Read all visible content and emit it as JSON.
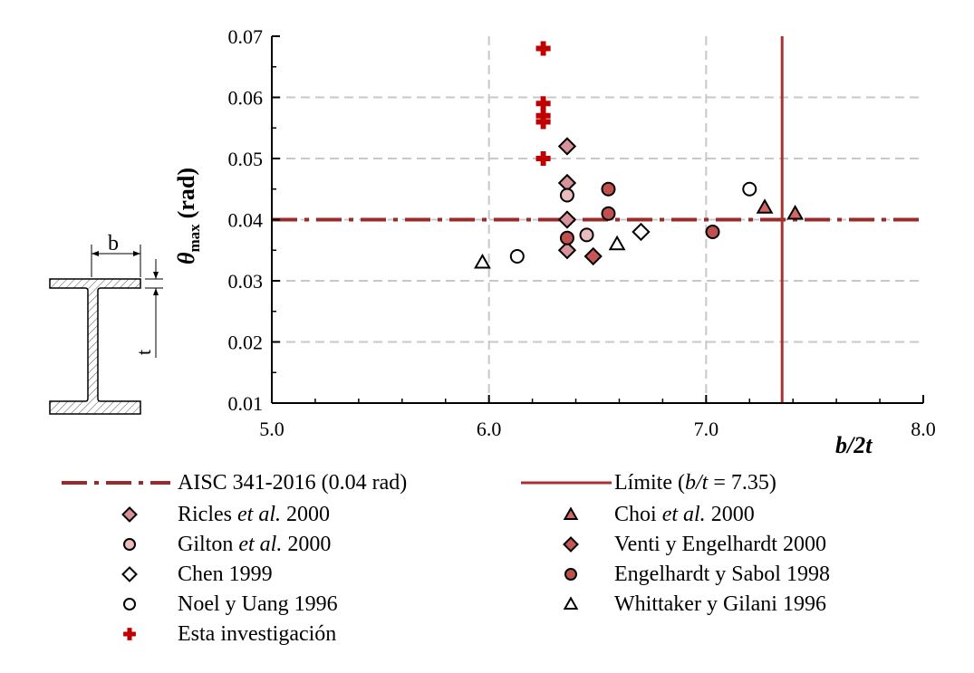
{
  "chart_data": {
    "type": "scatter",
    "xlabel": "b/2t",
    "ylabel_symbol": "θ",
    "ylabel_subscript": "max",
    "ylabel_unit": "(rad)",
    "xlim": [
      5.0,
      8.0
    ],
    "ylim": [
      0.01,
      0.07
    ],
    "xticks": [
      "5.0",
      "6.0",
      "7.0",
      "8.0"
    ],
    "yticks": [
      "0.01",
      "0.02",
      "0.03",
      "0.04",
      "0.05",
      "0.06",
      "0.07"
    ],
    "grid": true,
    "reference_lines": {
      "horizontal": {
        "value": 0.04,
        "label": "AISC 341-2016 (0.04 rad)",
        "color": "#9b2a2a",
        "style": "dash-dot"
      },
      "vertical": {
        "value": 7.35,
        "label_prefix": "Límite (",
        "label_italic": "b/t",
        "label_suffix": " = 7.35)",
        "color": "#a83232",
        "style": "solid"
      }
    },
    "series": [
      {
        "name": "Ricles et al. 2000",
        "parts": [
          "Ricles ",
          "et al.",
          " 2000"
        ],
        "marker": "diamond",
        "fill": "#d9919a",
        "edge": "#000000",
        "points": [
          [
            6.36,
            0.052
          ],
          [
            6.36,
            0.046
          ],
          [
            6.36,
            0.04
          ],
          [
            6.36,
            0.035
          ]
        ]
      },
      {
        "name": "Gilton et al. 2000",
        "parts": [
          "Gilton ",
          "et al.",
          " 2000"
        ],
        "marker": "circle",
        "fill": "#ebbcbc",
        "edge": "#000000",
        "points": [
          [
            6.36,
            0.044
          ],
          [
            6.45,
            0.0375
          ]
        ]
      },
      {
        "name": "Chen 1999",
        "parts": [
          "Chen 1999"
        ],
        "marker": "diamond",
        "fill": "#ffffff",
        "edge": "#000000",
        "points": [
          [
            6.7,
            0.038
          ]
        ]
      },
      {
        "name": "Noel y Uang 1996",
        "parts": [
          "Noel y Uang 1996"
        ],
        "marker": "circle",
        "fill": "#ffffff",
        "edge": "#000000",
        "points": [
          [
            6.13,
            0.034
          ],
          [
            7.2,
            0.045
          ]
        ]
      },
      {
        "name": "Esta investigación",
        "parts": [
          "Esta investigación"
        ],
        "marker": "plus",
        "fill": "#c00000",
        "edge": "#c00000",
        "points": [
          [
            6.25,
            0.068
          ],
          [
            6.25,
            0.059
          ],
          [
            6.25,
            0.057
          ],
          [
            6.25,
            0.056
          ],
          [
            6.25,
            0.05
          ]
        ]
      },
      {
        "name": "Choi et al. 2000",
        "parts": [
          "Choi ",
          "et al.",
          " 2000"
        ],
        "marker": "triangle",
        "fill": "#d06868",
        "edge": "#000000",
        "points": [
          [
            7.27,
            0.042
          ],
          [
            7.41,
            0.041
          ]
        ]
      },
      {
        "name": "Venti y Engelhardt 2000",
        "parts": [
          "Venti y Engelhardt 2000"
        ],
        "marker": "diamond",
        "fill": "#c95555",
        "edge": "#000000",
        "points": [
          [
            6.48,
            0.034
          ]
        ]
      },
      {
        "name": "Engelhardt y Sabol 1998",
        "parts": [
          "Engelhardt y Sabol 1998"
        ],
        "marker": "circle",
        "fill": "#c0504d",
        "edge": "#000000",
        "points": [
          [
            6.36,
            0.037
          ],
          [
            6.55,
            0.045
          ],
          [
            6.55,
            0.041
          ],
          [
            7.03,
            0.038
          ]
        ]
      },
      {
        "name": "Whittaker y Gilani 1996",
        "parts": [
          "Whittaker y Gilani 1996"
        ],
        "marker": "triangle",
        "fill": "#ffffff",
        "edge": "#000000",
        "points": [
          [
            5.97,
            0.033
          ],
          [
            6.59,
            0.036
          ]
        ]
      }
    ],
    "legend": {
      "placement": "bottom",
      "left_column": [
        "aisc",
        "Ricles et al. 2000",
        "Gilton et al. 2000",
        "Chen 1999",
        "Noel y Uang 1996",
        "Esta investigación"
      ],
      "right_column": [
        "limite",
        "Choi et al. 2000",
        "Venti y Engelhardt 2000",
        "Engelhardt y Sabol 1998",
        "Whittaker y Gilani 1996"
      ]
    },
    "section_diagram": {
      "dim_b": "b",
      "dim_t": "t"
    }
  }
}
